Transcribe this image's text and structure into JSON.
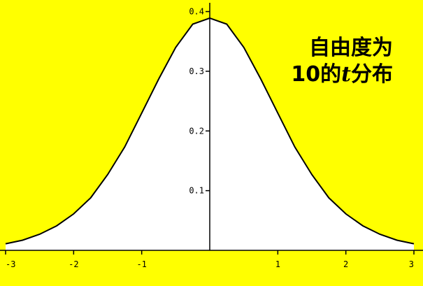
{
  "chart_data": {
    "type": "area",
    "annotation_line1": "自由度为",
    "annotation_line2_prefix": "10的",
    "annotation_line2_var": "t",
    "annotation_line2_suffix": "分布",
    "xlim": [
      -3,
      3
    ],
    "ylim": [
      0,
      0.41
    ],
    "x_ticks": [
      -3,
      -2,
      -1,
      1,
      2,
      3
    ],
    "y_ticks": [
      0.1,
      0.2,
      0.3,
      0.4
    ],
    "x_tick_labels": [
      "-3",
      "-2",
      "-1",
      "1",
      "2",
      "3"
    ],
    "y_tick_labels": [
      "0.1",
      "0.2",
      "0.3",
      "0.4"
    ],
    "series": [
      {
        "x": [
          -3,
          -2.75,
          -2.5,
          -2.25,
          -2,
          -1.75,
          -1.5,
          -1.25,
          -1,
          -0.75,
          -0.5,
          -0.25,
          0,
          0.25,
          0.5,
          0.75,
          1,
          1.25,
          1.5,
          1.75,
          2,
          2.25,
          2.5,
          2.75,
          3
        ],
        "y": [
          0.011,
          0.017,
          0.027,
          0.041,
          0.061,
          0.088,
          0.127,
          0.173,
          0.23,
          0.287,
          0.34,
          0.379,
          0.389,
          0.379,
          0.34,
          0.287,
          0.23,
          0.173,
          0.127,
          0.088,
          0.061,
          0.041,
          0.027,
          0.017,
          0.011
        ]
      }
    ],
    "colors": {
      "background": "#ffff00",
      "area_fill": "#ffffff",
      "curve": "#000000"
    }
  }
}
